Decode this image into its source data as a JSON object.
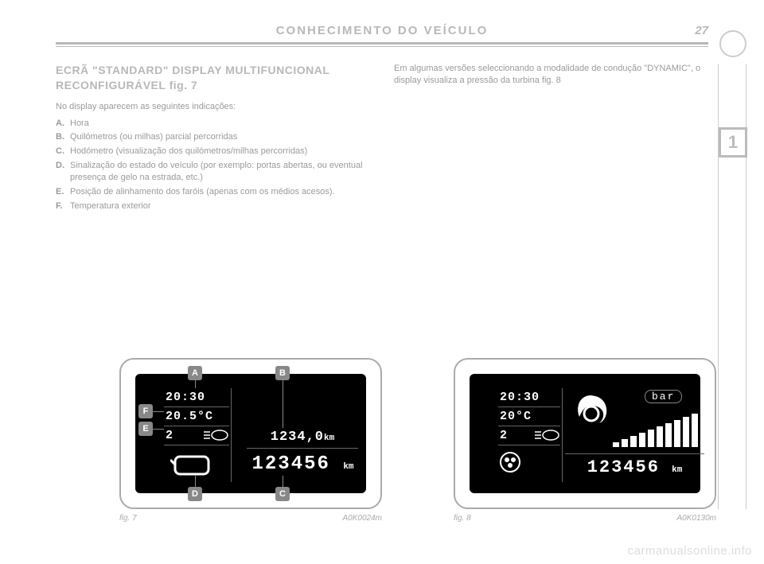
{
  "page": {
    "header": "CONHECIMENTO DO VEÍCULO",
    "number": "27",
    "side_chapter": "1"
  },
  "left": {
    "title": "ECRÃ \"STANDARD\" DISPLAY MULTIFUNCIONAL RECONFIGURÁVEL fig. 7",
    "intro": "No display aparecem as seguintes indicações:",
    "items": [
      {
        "label": "A.",
        "text": "Hora"
      },
      {
        "label": "B.",
        "text": "Quilómetros (ou milhas) parcial percorridas"
      },
      {
        "label": "C.",
        "text": "Hodómetro (visualização dos quilómetros/milhas percorridas)"
      },
      {
        "label": "D.",
        "text": "Sinalização do estado do veículo (por exemplo: portas abertas, ou eventual presença de gelo na estrada, etc.)"
      },
      {
        "label": "E.",
        "text": "Posição de alinhamento dos faróis (apenas com os médios acesos)."
      },
      {
        "label": "F.",
        "text": "Temperatura exterior"
      }
    ]
  },
  "right": {
    "text": "Em algumas versões seleccionando a modalidade de condução \"DYNAMIC\", o display visualiza a pressão da turbina fig. 8"
  },
  "fig7": {
    "caption": "fig. 7",
    "code": "A0K0024m",
    "markers": [
      "A",
      "B",
      "C",
      "D",
      "E",
      "F"
    ],
    "time": "20:30",
    "temp": "20.5°C",
    "headlamp": "2",
    "trip": "1234,0",
    "trip_unit": "km",
    "odo": "123456",
    "odo_unit": "km"
  },
  "fig8": {
    "caption": "fig. 8",
    "code": "A0K0130m",
    "time": "20:30",
    "temp": "20°C",
    "headlamp": "2",
    "bar_label": "bar",
    "odo": "123456",
    "odo_unit": "km",
    "bars": [
      6,
      10,
      14,
      18,
      22,
      26,
      30,
      34,
      38,
      42
    ]
  },
  "watermark": "carmanualsonline.info"
}
